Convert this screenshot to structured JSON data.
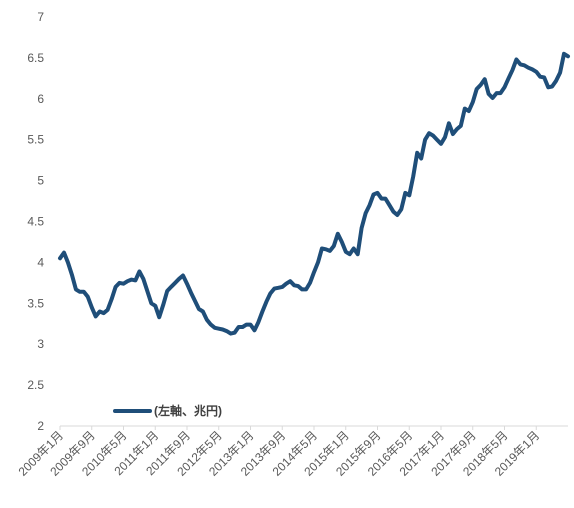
{
  "chart_data": {
    "type": "line",
    "title": "",
    "xlabel": "",
    "ylabel": "",
    "ylim": [
      2,
      7
    ],
    "yticks": [
      "2",
      "2.5",
      "3",
      "3.5",
      "4",
      "4.5",
      "5",
      "5.5",
      "6",
      "6.5",
      "7"
    ],
    "xticks": [
      "2009年1月",
      "2009年9月",
      "2010年5月",
      "2011年1月",
      "2011年9月",
      "2012年5月",
      "2013年1月",
      "2013年9月",
      "2014年5月",
      "2015年1月",
      "2015年9月",
      "2016年5月",
      "2017年1月",
      "2017年9月",
      "2018年5月",
      "2019年1月"
    ],
    "grid": false,
    "legend": {
      "position": "lower-left",
      "entries": [
        "(左軸、兆円)"
      ]
    },
    "colors": {
      "series": "#1f4e79",
      "axis": "#d9d9d9",
      "text": "#595959"
    },
    "series": [
      {
        "name": "(左軸、兆円)",
        "x_start": "2009-01",
        "interval": "month",
        "values": [
          4.05,
          4.12,
          4.0,
          3.85,
          3.67,
          3.64,
          3.64,
          3.58,
          3.45,
          3.34,
          3.4,
          3.38,
          3.42,
          3.55,
          3.7,
          3.75,
          3.74,
          3.77,
          3.79,
          3.78,
          3.89,
          3.8,
          3.65,
          3.5,
          3.47,
          3.33,
          3.48,
          3.65,
          3.7,
          3.75,
          3.8,
          3.84,
          3.74,
          3.63,
          3.53,
          3.43,
          3.4,
          3.3,
          3.24,
          3.2,
          3.19,
          3.18,
          3.16,
          3.13,
          3.14,
          3.21,
          3.21,
          3.24,
          3.24,
          3.17,
          3.27,
          3.4,
          3.52,
          3.62,
          3.68,
          3.69,
          3.7,
          3.74,
          3.77,
          3.72,
          3.71,
          3.67,
          3.67,
          3.75,
          3.88,
          4.0,
          4.17,
          4.16,
          4.14,
          4.2,
          4.35,
          4.25,
          4.13,
          4.1,
          4.17,
          4.1,
          4.42,
          4.6,
          4.7,
          4.83,
          4.85,
          4.78,
          4.78,
          4.7,
          4.62,
          4.58,
          4.65,
          4.85,
          4.82,
          5.05,
          5.34,
          5.27,
          5.5,
          5.58,
          5.55,
          5.5,
          5.45,
          5.53,
          5.7,
          5.57,
          5.63,
          5.67,
          5.88,
          5.85,
          5.96,
          6.12,
          6.17,
          6.24,
          6.06,
          6.01,
          6.07,
          6.07,
          6.14,
          6.25,
          6.35,
          6.48,
          6.42,
          6.41,
          6.38,
          6.36,
          6.33,
          6.27,
          6.26,
          6.14,
          6.15,
          6.22,
          6.32,
          6.55,
          6.52
        ]
      }
    ]
  }
}
